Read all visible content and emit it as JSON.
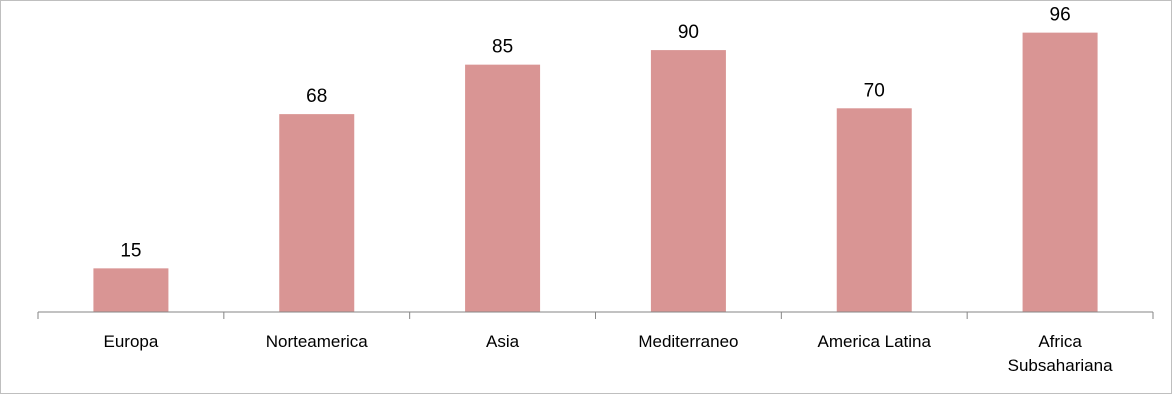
{
  "chart_data": {
    "type": "bar",
    "categories": [
      "Europa",
      "Norteamerica",
      "Asia",
      "Mediterraneo",
      "America Latina",
      [
        "Africa",
        "Subsahariana"
      ]
    ],
    "values": [
      15,
      68,
      85,
      90,
      70,
      96
    ],
    "title": "",
    "xlabel": "",
    "ylabel": "",
    "ylim": [
      0,
      100
    ],
    "data_labels": true,
    "grid": false,
    "legend": "none",
    "colors": {
      "bar": "#d99594",
      "axis": "#868686",
      "text": "#000000",
      "frame": "#bfbfbf"
    }
  }
}
